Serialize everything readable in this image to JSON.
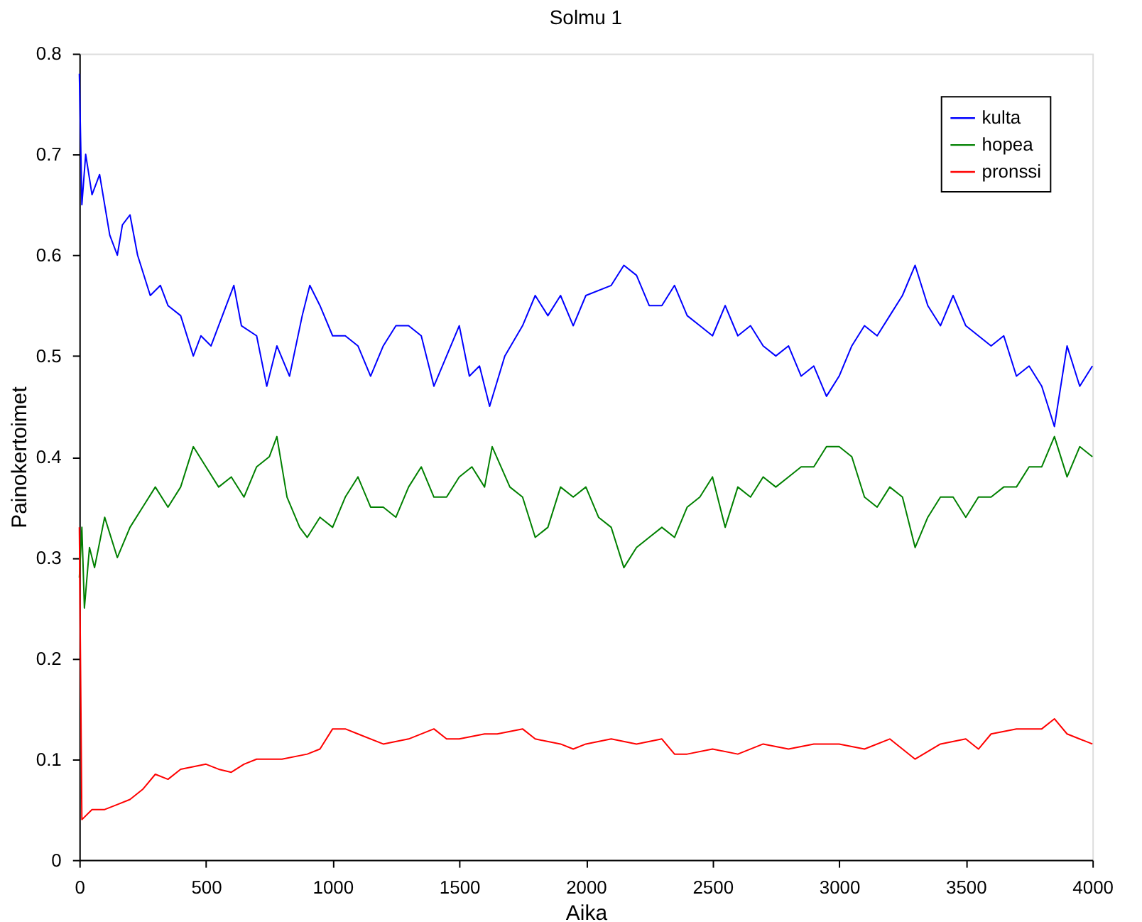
{
  "chart_data": {
    "type": "line",
    "title": "Solmu 1",
    "xlabel": "Aika",
    "ylabel": "Painokertoimet",
    "xlim": [
      0,
      4000
    ],
    "xticks": [
      0,
      500,
      1000,
      1500,
      2000,
      2500,
      3000,
      3500,
      4000
    ],
    "ylim": [
      0,
      0.8
    ],
    "yticks": [
      0,
      0.1,
      0.2,
      0.3,
      0.4,
      0.5,
      0.6,
      0.7,
      0.8
    ],
    "grid": false,
    "legend": "top right",
    "marker": "none",
    "line_style": "solid",
    "series": [
      {
        "name": "kulta",
        "color": "#0000ff",
        "x": [
          0,
          10,
          25,
          50,
          80,
          120,
          150,
          170,
          200,
          230,
          280,
          320,
          350,
          400,
          450,
          480,
          520,
          580,
          610,
          640,
          700,
          740,
          780,
          830,
          880,
          910,
          950,
          1000,
          1050,
          1100,
          1150,
          1200,
          1250,
          1300,
          1350,
          1400,
          1450,
          1500,
          1540,
          1580,
          1620,
          1680,
          1750,
          1800,
          1850,
          1900,
          1950,
          2000,
          2100,
          2150,
          2200,
          2250,
          2300,
          2350,
          2400,
          2450,
          2500,
          2550,
          2600,
          2650,
          2700,
          2750,
          2800,
          2850,
          2900,
          2950,
          3000,
          3050,
          3100,
          3150,
          3200,
          3250,
          3300,
          3350,
          3400,
          3450,
          3500,
          3550,
          3600,
          3650,
          3700,
          3750,
          3800,
          3850,
          3900,
          3950,
          4000
        ],
        "values": [
          0.78,
          0.65,
          0.7,
          0.66,
          0.68,
          0.62,
          0.6,
          0.63,
          0.64,
          0.6,
          0.56,
          0.57,
          0.55,
          0.54,
          0.5,
          0.52,
          0.51,
          0.55,
          0.57,
          0.53,
          0.52,
          0.47,
          0.51,
          0.48,
          0.54,
          0.57,
          0.55,
          0.52,
          0.52,
          0.51,
          0.48,
          0.51,
          0.53,
          0.53,
          0.52,
          0.47,
          0.5,
          0.53,
          0.48,
          0.49,
          0.45,
          0.5,
          0.53,
          0.56,
          0.54,
          0.56,
          0.53,
          0.56,
          0.57,
          0.59,
          0.58,
          0.55,
          0.55,
          0.57,
          0.54,
          0.53,
          0.52,
          0.55,
          0.52,
          0.53,
          0.51,
          0.5,
          0.51,
          0.48,
          0.49,
          0.46,
          0.48,
          0.51,
          0.53,
          0.52,
          0.54,
          0.56,
          0.59,
          0.55,
          0.53,
          0.56,
          0.53,
          0.52,
          0.51,
          0.52,
          0.48,
          0.49,
          0.47,
          0.43,
          0.51,
          0.47,
          0.49
        ]
      },
      {
        "name": "hopea",
        "color": "#008000",
        "x": [
          0,
          10,
          20,
          40,
          60,
          100,
          150,
          200,
          250,
          300,
          350,
          400,
          450,
          500,
          550,
          600,
          650,
          700,
          750,
          780,
          820,
          870,
          900,
          950,
          1000,
          1050,
          1100,
          1150,
          1200,
          1250,
          1300,
          1350,
          1400,
          1450,
          1500,
          1550,
          1600,
          1630,
          1700,
          1750,
          1800,
          1850,
          1900,
          1950,
          2000,
          2050,
          2100,
          2150,
          2200,
          2250,
          2300,
          2350,
          2400,
          2450,
          2500,
          2550,
          2600,
          2650,
          2700,
          2750,
          2800,
          2850,
          2900,
          2950,
          3000,
          3050,
          3100,
          3150,
          3200,
          3250,
          3300,
          3350,
          3400,
          3450,
          3500,
          3550,
          3600,
          3650,
          3700,
          3750,
          3800,
          3850,
          3900,
          3950,
          4000
        ],
        "values": [
          0.28,
          0.33,
          0.25,
          0.31,
          0.29,
          0.34,
          0.3,
          0.33,
          0.35,
          0.37,
          0.35,
          0.37,
          0.41,
          0.39,
          0.37,
          0.38,
          0.36,
          0.39,
          0.4,
          0.42,
          0.36,
          0.33,
          0.32,
          0.34,
          0.33,
          0.36,
          0.38,
          0.35,
          0.35,
          0.34,
          0.37,
          0.39,
          0.36,
          0.36,
          0.38,
          0.39,
          0.37,
          0.41,
          0.37,
          0.36,
          0.32,
          0.33,
          0.37,
          0.36,
          0.37,
          0.34,
          0.33,
          0.29,
          0.31,
          0.32,
          0.33,
          0.32,
          0.35,
          0.36,
          0.38,
          0.33,
          0.37,
          0.36,
          0.38,
          0.37,
          0.38,
          0.39,
          0.39,
          0.41,
          0.41,
          0.4,
          0.36,
          0.35,
          0.37,
          0.36,
          0.31,
          0.34,
          0.36,
          0.36,
          0.34,
          0.36,
          0.36,
          0.37,
          0.37,
          0.39,
          0.39,
          0.42,
          0.38,
          0.41,
          0.4
        ]
      },
      {
        "name": "pronssi",
        "color": "#ff0000",
        "x": [
          0,
          10,
          50,
          100,
          150,
          200,
          250,
          300,
          350,
          400,
          500,
          550,
          600,
          650,
          700,
          800,
          900,
          950,
          1000,
          1050,
          1100,
          1200,
          1300,
          1400,
          1450,
          1500,
          1600,
          1650,
          1750,
          1800,
          1900,
          1950,
          2000,
          2100,
          2200,
          2300,
          2350,
          2400,
          2500,
          2600,
          2700,
          2800,
          2900,
          3000,
          3100,
          3200,
          3250,
          3300,
          3400,
          3500,
          3550,
          3600,
          3700,
          3800,
          3850,
          3900,
          4000
        ],
        "values": [
          0.33,
          0.04,
          0.05,
          0.05,
          0.055,
          0.06,
          0.07,
          0.085,
          0.08,
          0.09,
          0.095,
          0.09,
          0.087,
          0.095,
          0.1,
          0.1,
          0.105,
          0.11,
          0.13,
          0.13,
          0.125,
          0.115,
          0.12,
          0.13,
          0.12,
          0.12,
          0.125,
          0.125,
          0.13,
          0.12,
          0.115,
          0.11,
          0.115,
          0.12,
          0.115,
          0.12,
          0.105,
          0.105,
          0.11,
          0.105,
          0.115,
          0.11,
          0.115,
          0.115,
          0.11,
          0.12,
          0.11,
          0.1,
          0.115,
          0.12,
          0.11,
          0.125,
          0.13,
          0.13,
          0.14,
          0.125,
          0.115
        ]
      }
    ]
  }
}
